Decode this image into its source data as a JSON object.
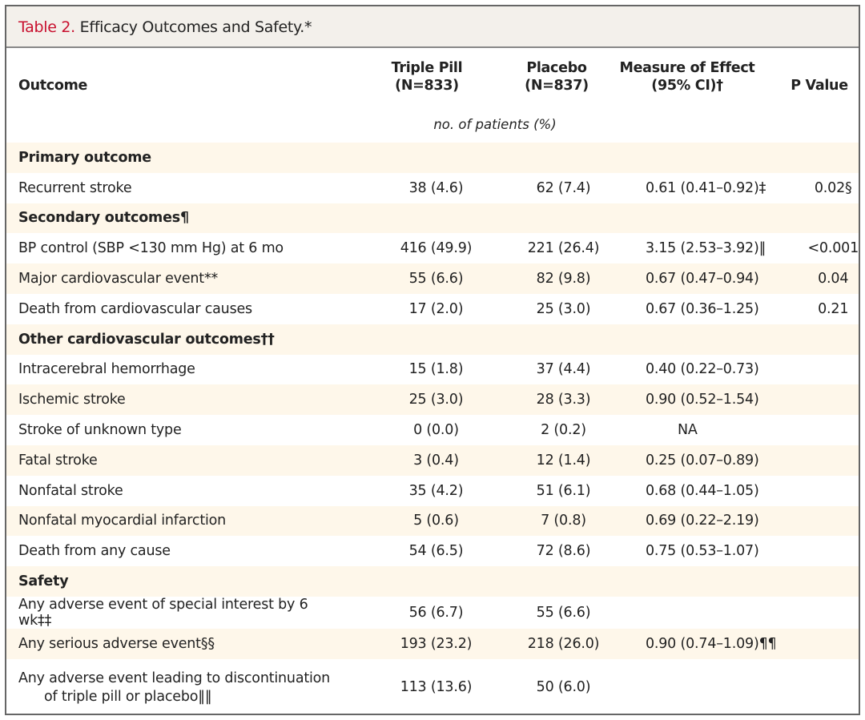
{
  "title": {
    "label": "Table 2.",
    "text": " Efficacy Outcomes and Safety.*"
  },
  "header": {
    "outcome": "Outcome",
    "triple": "Triple Pill",
    "triple_n": "(N=833)",
    "placebo": "Placebo",
    "placebo_n": "(N=837)",
    "measure": "Measure of Effect",
    "measure_ci": "(95% CI)†",
    "p": "P Value",
    "unit": "no. of patients (%)"
  },
  "rows": [
    {
      "section": "Primary outcome"
    },
    {
      "outcome": "Recurrent stroke",
      "triple": "38 (4.6)",
      "placebo": "62 (7.4)",
      "measure": "0.61 (0.41–0.92)‡",
      "p": "0.02§"
    },
    {
      "section": "Secondary outcomes¶"
    },
    {
      "outcome": "BP control (SBP <130 mm Hg) at 6 mo",
      "triple": "416 (49.9)",
      "placebo": "221 (26.4)",
      "measure": "3.15 (2.53–3.92)‖",
      "p": "<0.001"
    },
    {
      "outcome": "Major cardiovascular event**",
      "triple": "55 (6.6)",
      "placebo": "82 (9.8)",
      "measure": "0.67 (0.47–0.94)",
      "p": "0.04"
    },
    {
      "outcome": "Death from cardiovascular causes",
      "triple": "17 (2.0)",
      "placebo": "25 (3.0)",
      "measure": "0.67 (0.36–1.25)",
      "p": "0.21"
    },
    {
      "section": "Other cardiovascular outcomes††"
    },
    {
      "outcome": "Intracerebral hemorrhage",
      "triple": "15 (1.8)",
      "placebo": "37 (4.4)",
      "measure": "0.40 (0.22–0.73)",
      "p": ""
    },
    {
      "outcome": "Ischemic stroke",
      "triple": "25 (3.0)",
      "placebo": "28 (3.3)",
      "measure": "0.90 (0.52–1.54)",
      "p": ""
    },
    {
      "outcome": "Stroke of unknown type",
      "triple": "0 (0.0)",
      "placebo": "2 (0.2)",
      "measure": "NA",
      "p": ""
    },
    {
      "outcome": "Fatal stroke",
      "triple": "3 (0.4)",
      "placebo": "12 (1.4)",
      "measure": "0.25 (0.07–0.89)",
      "p": ""
    },
    {
      "outcome": "Nonfatal stroke",
      "triple": "35 (4.2)",
      "placebo": "51 (6.1)",
      "measure": "0.68 (0.44–1.05)",
      "p": ""
    },
    {
      "outcome": "Nonfatal myocardial infarction",
      "triple": "5 (0.6)",
      "placebo": "7 (0.8)",
      "measure": "0.69 (0.22–2.19)",
      "p": ""
    },
    {
      "outcome": "Death from any cause",
      "triple": "54 (6.5)",
      "placebo": "72 (8.6)",
      "measure": "0.75 (0.53–1.07)",
      "p": ""
    },
    {
      "section": "Safety"
    },
    {
      "outcome": "Any adverse event of special interest by 6 wk‡‡",
      "triple": "56 (6.7)",
      "placebo": "55 (6.6)",
      "measure": "",
      "p": ""
    },
    {
      "outcome": "Any serious adverse event§§",
      "triple": "193 (23.2)",
      "placebo": "218 (26.0)",
      "measure": "0.90 (0.74–1.09)¶¶",
      "p": ""
    },
    {
      "outcome": "Any adverse event leading to discontinuation",
      "outcome_cont": "of triple pill or placebo‖‖",
      "triple": "113 (13.6)",
      "placebo": "50 (6.0)",
      "measure": "",
      "p": ""
    }
  ]
}
